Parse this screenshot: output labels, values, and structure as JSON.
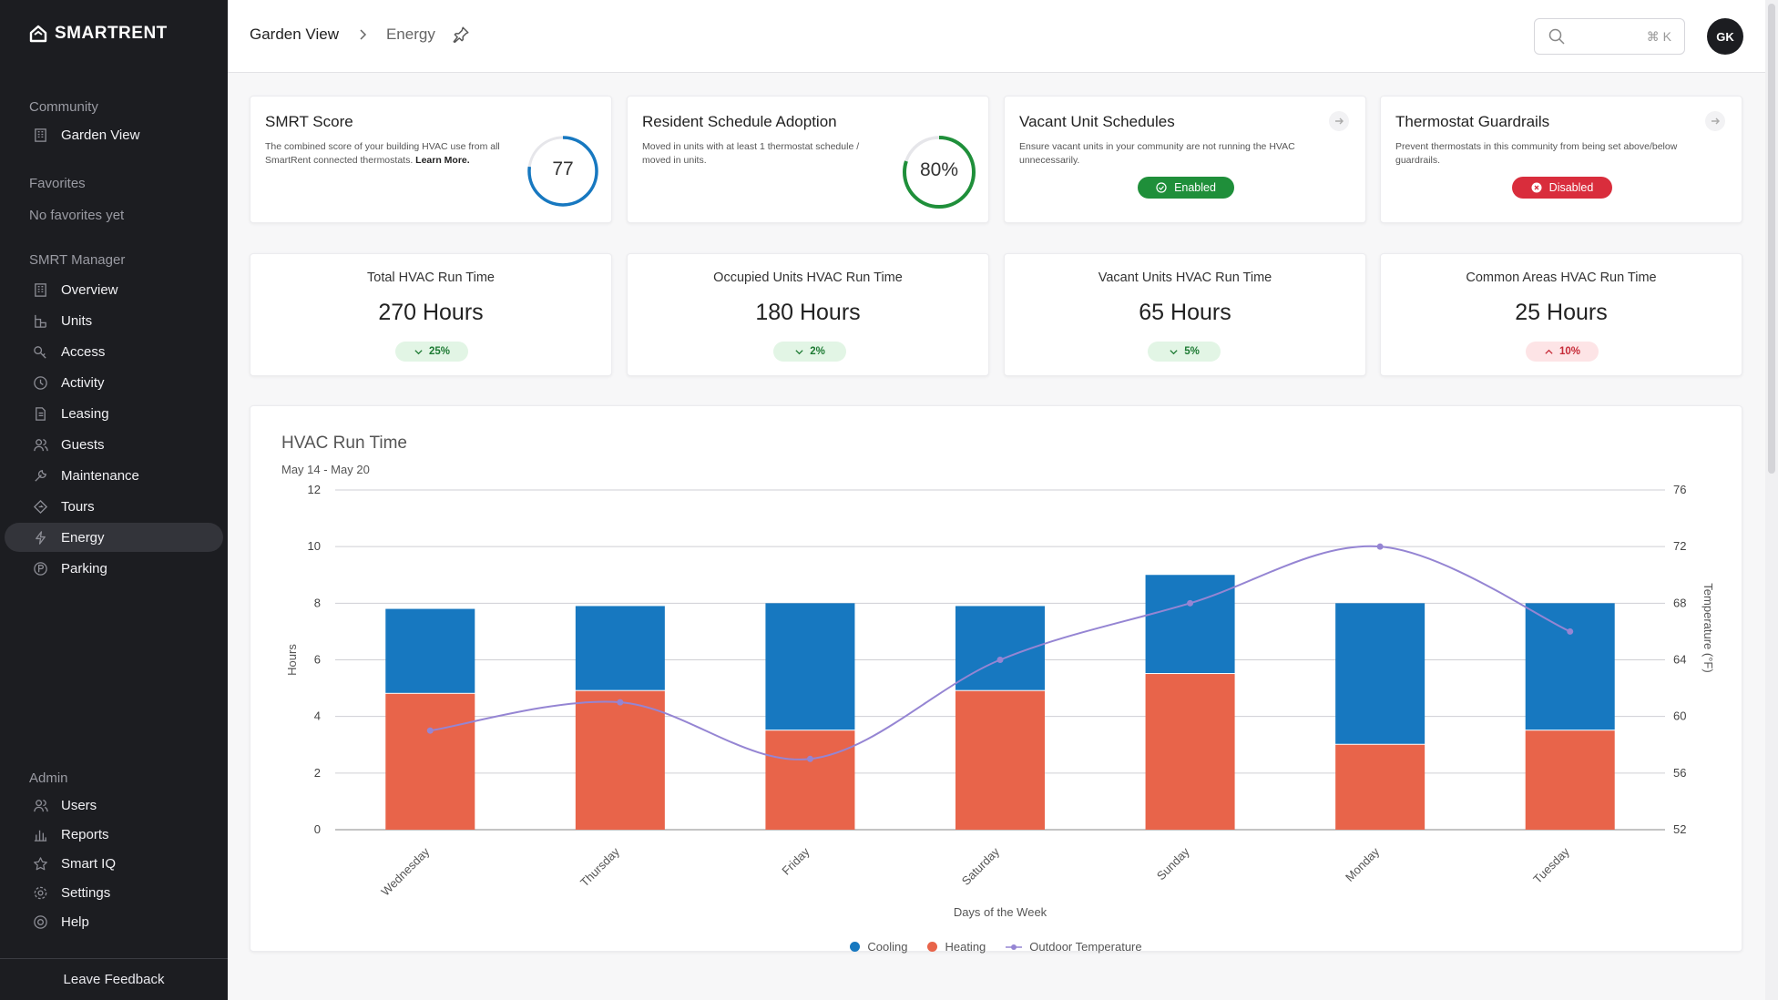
{
  "app": {
    "brand": "SMARTRENT"
  },
  "sidebar": {
    "community_label": "Community",
    "community_item": "Garden View",
    "favorites_label": "Favorites",
    "favorites_empty": "No favorites yet",
    "manager_label": "SMRT Manager",
    "manager_items": [
      "Overview",
      "Units",
      "Access",
      "Activity",
      "Leasing",
      "Guests",
      "Maintenance",
      "Tours",
      "Energy",
      "Parking"
    ],
    "active_item": "Energy",
    "admin_label": "Admin",
    "admin_items": [
      "Users",
      "Reports",
      "Smart IQ",
      "Settings",
      "Help"
    ],
    "feedback": "Leave Feedback"
  },
  "header": {
    "breadcrumb": [
      "Garden View",
      "Energy"
    ],
    "search_shortcut": "⌘ K",
    "avatar_initials": "GK"
  },
  "cards": {
    "smrt_score": {
      "title": "SMRT Score",
      "desc": "The combined score of your building HVAC use from all SmartRent connected thermostats.",
      "link": "Learn More.",
      "value": "77",
      "fraction": 0.77
    },
    "adoption": {
      "title": "Resident Schedule Adoption",
      "desc": "Moved in units with at least 1 thermostat schedule / moved in units.",
      "value": "80%",
      "fraction": 0.8
    },
    "vacant": {
      "title": "Vacant Unit Schedules",
      "desc": "Ensure vacant units in your community are not running the HVAC unnecessarily.",
      "status": "Enabled"
    },
    "guardrails": {
      "title": "Thermostat Guardrails",
      "desc": "Prevent thermostats in this community from being set above/below guardrails.",
      "status": "Disabled"
    }
  },
  "metrics": [
    {
      "label": "Total HVAC Run Time",
      "value": "270 Hours",
      "trend": "25%",
      "direction": "down"
    },
    {
      "label": "Occupied Units HVAC Run Time",
      "value": "180 Hours",
      "trend": "2%",
      "direction": "down"
    },
    {
      "label": "Vacant Units HVAC Run Time",
      "value": "65 Hours",
      "trend": "5%",
      "direction": "down"
    },
    {
      "label": "Common Areas HVAC Run Time",
      "value": "25 Hours",
      "trend": "10%",
      "direction": "up"
    }
  ],
  "colors": {
    "cooling": "#1778c0",
    "heating": "#e8644a",
    "temperature": "#9585d3",
    "ring": "#1778c0",
    "ring_green": "#1f8f3a",
    "sidebar": "#1c1d21"
  },
  "chart_data": {
    "type": "bar",
    "title": "HVAC Run Time",
    "subtitle": "May 14 - May 20",
    "xlabel": "Days of the Week",
    "ylabel": "Hours",
    "y2label": "Temperature (°F)",
    "categories": [
      "Wednesday",
      "Thursday",
      "Friday",
      "Saturday",
      "Sunday",
      "Monday",
      "Tuesday"
    ],
    "stacked": true,
    "series": [
      {
        "name": "Heating",
        "values": [
          4.8,
          4.9,
          3.5,
          4.9,
          5.5,
          3.0,
          3.5
        ]
      },
      {
        "name": "Cooling",
        "values": [
          3.0,
          3.0,
          4.5,
          3.0,
          3.5,
          5.0,
          4.5
        ]
      },
      {
        "name": "Outdoor Temperature",
        "axis": "right",
        "type": "line",
        "values": [
          59,
          61,
          57,
          64,
          68,
          72,
          66
        ]
      }
    ],
    "ylim": [
      0,
      12
    ],
    "yticks": [
      0,
      2,
      4,
      6,
      8,
      10,
      12
    ],
    "y2lim": [
      52,
      76
    ],
    "y2ticks": [
      52,
      56,
      60,
      64,
      68,
      72,
      76
    ],
    "grid": true,
    "legend": "bottom-center",
    "legend_entries": [
      "Cooling",
      "Heating",
      "Outdoor Temperature"
    ]
  }
}
